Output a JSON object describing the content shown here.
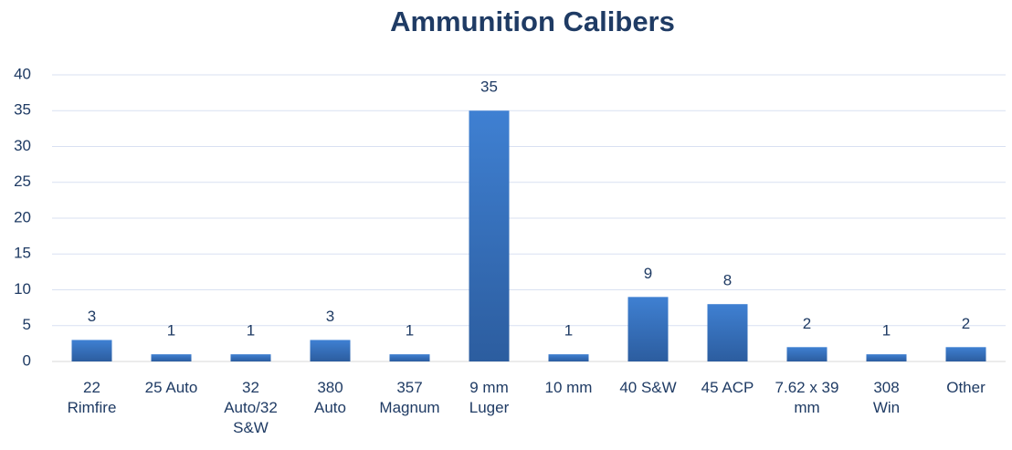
{
  "chart_data": {
    "type": "bar",
    "title": "Ammunition Calibers",
    "categories": [
      "22\nRimfire",
      "25 Auto",
      "32\nAuto/32\nS&W",
      "380\nAuto",
      "357\nMagnum",
      "9 mm\nLuger",
      "10 mm",
      "40 S&W",
      "45 ACP",
      "7.62 x 39\nmm",
      "308\nWin",
      "Other"
    ],
    "values": [
      3,
      1,
      1,
      3,
      1,
      35,
      1,
      9,
      8,
      2,
      1,
      2
    ],
    "color": "#3a75c4",
    "ylim": [
      0,
      40
    ],
    "yticks": [
      0,
      5,
      10,
      15,
      20,
      25,
      30,
      35,
      40
    ],
    "grid": true
  }
}
